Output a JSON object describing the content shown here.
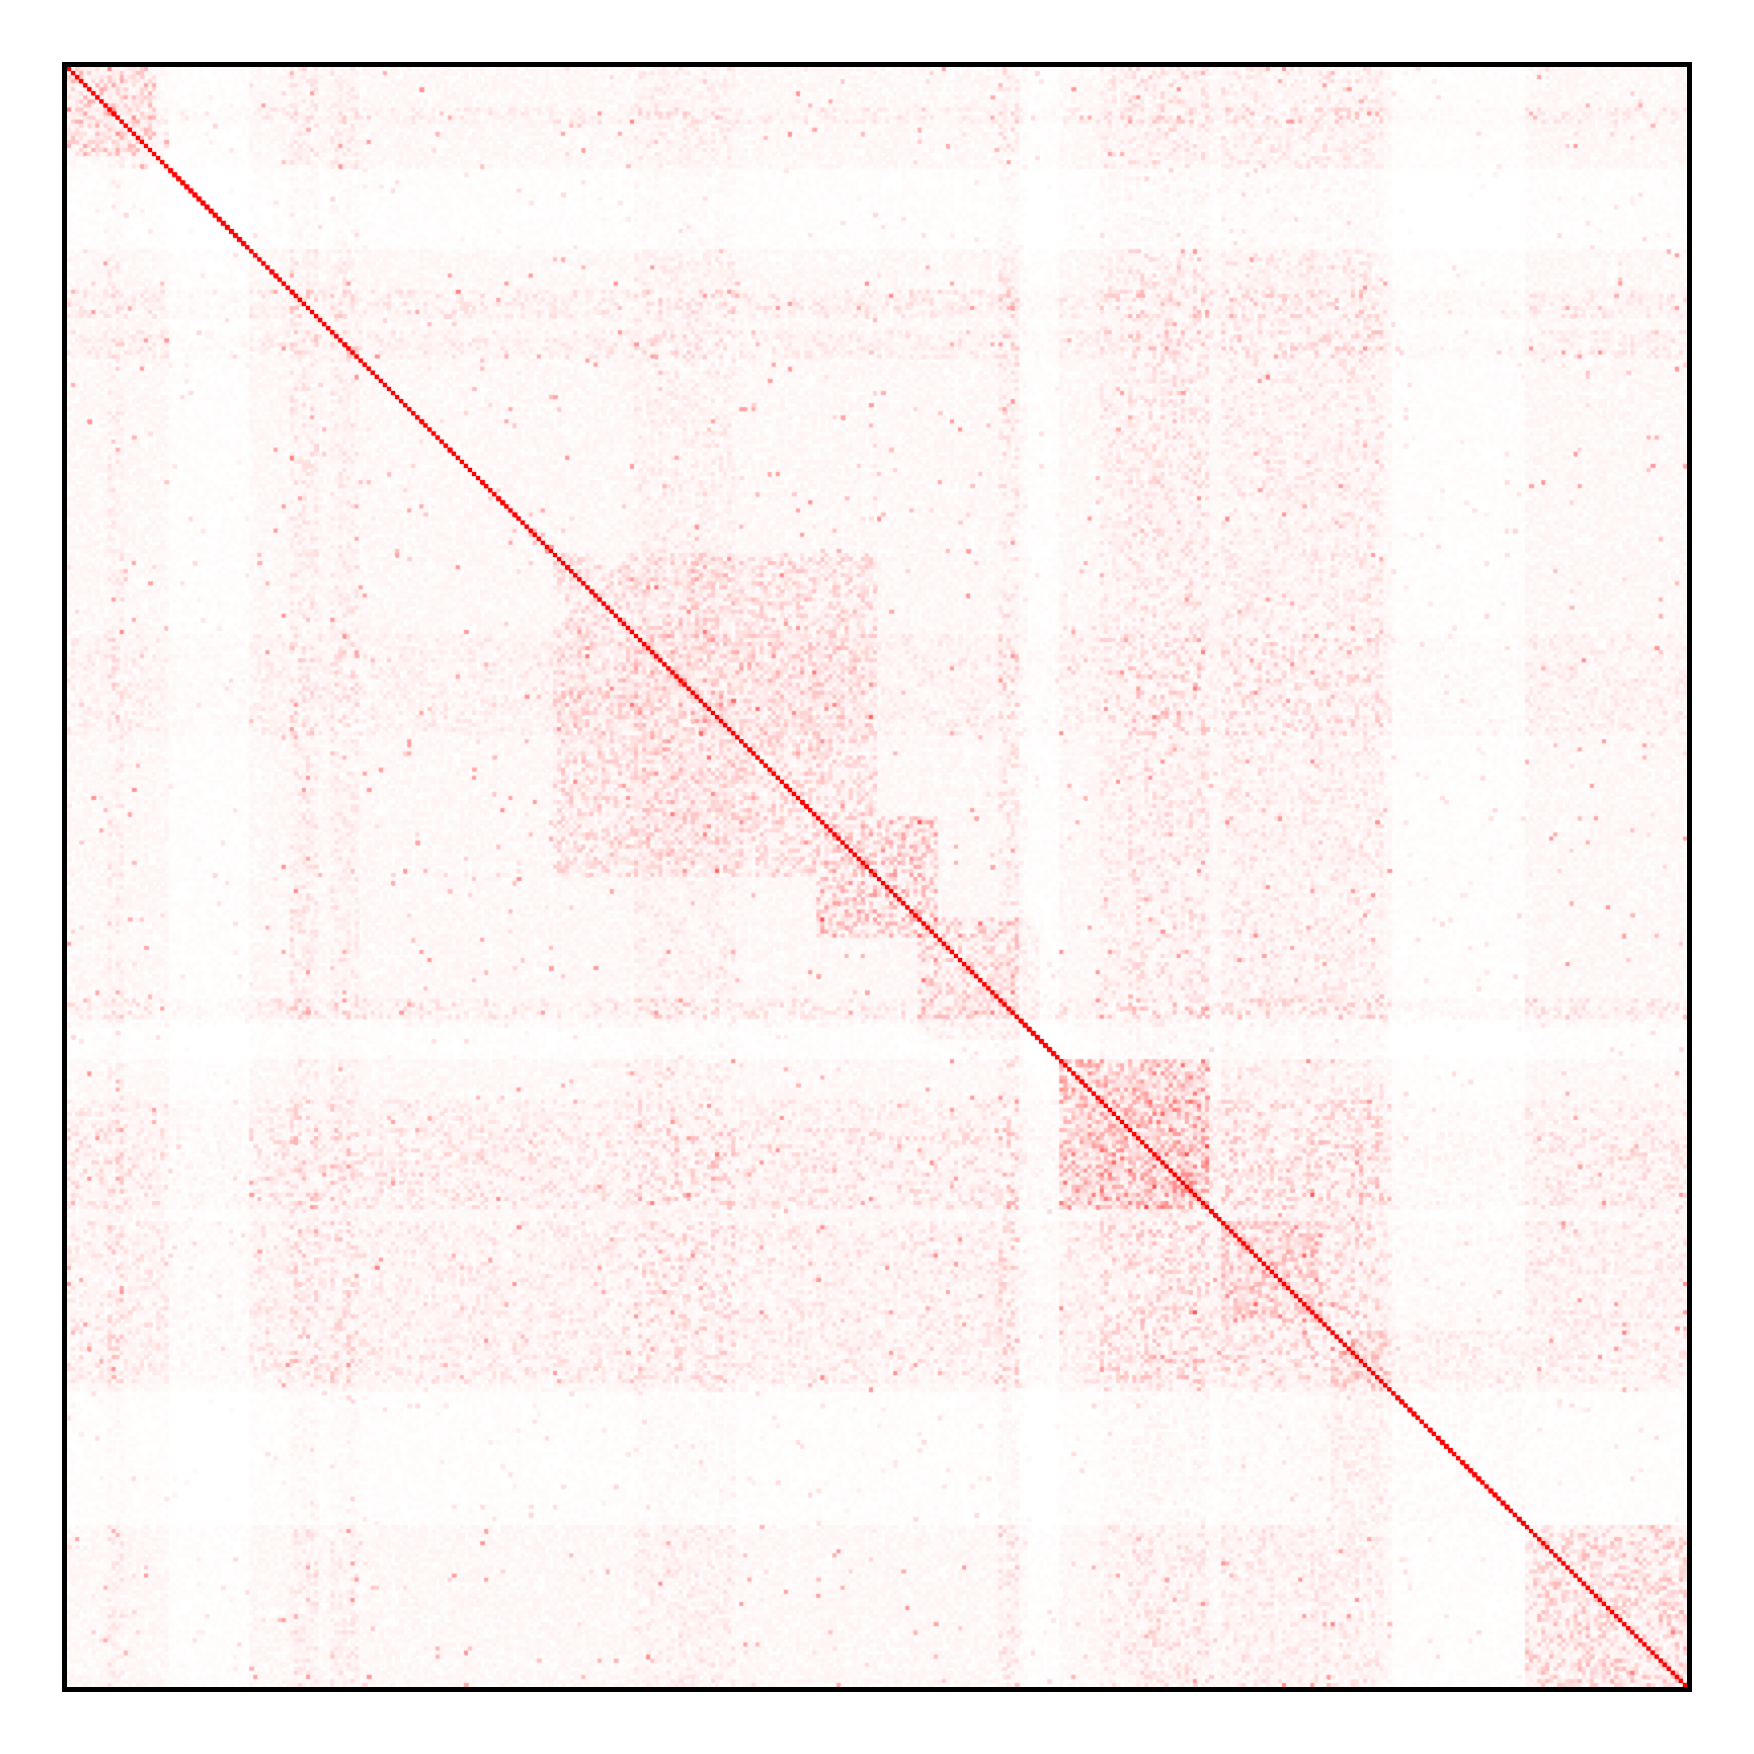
{
  "chart_data": {
    "type": "heatmap",
    "title": "",
    "xlabel": "",
    "ylabel": "",
    "matrix_size": 400,
    "axis_ticks": false,
    "colorbar": false,
    "colormap": {
      "low": "#ffffff",
      "high": "#ff0000"
    },
    "frame_color": "#000000",
    "diagonal_value": 1.0,
    "background_level": 0.05,
    "blocks": [
      {
        "start": 0,
        "end": 22,
        "level": 0.35
      },
      {
        "start": 120,
        "end": 200,
        "level": 0.25
      },
      {
        "start": 185,
        "end": 215,
        "level": 0.45
      },
      {
        "start": 210,
        "end": 240,
        "level": 0.3
      },
      {
        "start": 245,
        "end": 282,
        "level": 0.45
      },
      {
        "start": 285,
        "end": 310,
        "level": 0.3
      },
      {
        "start": 312,
        "end": 360,
        "level": 0.3
      },
      {
        "start": 360,
        "end": 400,
        "level": 0.3
      }
    ],
    "band_groups": [
      {
        "start": 10,
        "end": 14,
        "level": 0.25
      },
      {
        "start": 55,
        "end": 62,
        "level": 0.3
      },
      {
        "start": 65,
        "end": 72,
        "level": 0.25
      },
      {
        "start": 140,
        "end": 165,
        "level": 0.22
      },
      {
        "start": 230,
        "end": 237,
        "level": 0.35
      },
      {
        "start": 255,
        "end": 265,
        "level": 0.25
      },
      {
        "start": 262,
        "end": 282,
        "level": 0.4
      },
      {
        "start": 285,
        "end": 300,
        "level": 0.3
      },
      {
        "start": 295,
        "end": 305,
        "level": 0.25
      },
      {
        "start": 305,
        "end": 325,
        "level": 0.3
      }
    ],
    "blank_bands": [
      {
        "start": 25,
        "end": 45,
        "level": 0.02
      },
      {
        "start": 235,
        "end": 245,
        "level": 0.02
      },
      {
        "start": 327,
        "end": 360,
        "level": 0.03
      }
    ]
  }
}
